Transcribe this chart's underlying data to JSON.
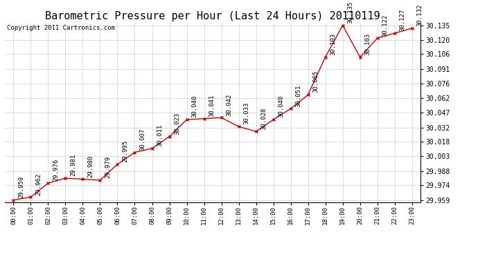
{
  "title": "Barometric Pressure per Hour (Last 24 Hours) 20110119",
  "copyright": "Copyright 2011 Cartronics.com",
  "hours": [
    "00:00",
    "01:00",
    "02:00",
    "03:00",
    "04:00",
    "05:00",
    "06:00",
    "07:00",
    "08:00",
    "09:00",
    "10:00",
    "11:00",
    "12:00",
    "13:00",
    "14:00",
    "15:00",
    "16:00",
    "17:00",
    "18:00",
    "19:00",
    "20:00",
    "21:00",
    "22:00",
    "23:00"
  ],
  "values": [
    29.959,
    29.962,
    29.976,
    29.981,
    29.98,
    29.979,
    29.995,
    30.007,
    30.011,
    30.023,
    30.04,
    30.041,
    30.042,
    30.033,
    30.028,
    30.04,
    30.051,
    30.065,
    30.103,
    30.135,
    30.103,
    30.122,
    30.127,
    30.132
  ],
  "ylim_min": 29.957,
  "ylim_max": 30.137,
  "yticks": [
    29.959,
    29.974,
    29.988,
    30.003,
    30.018,
    30.032,
    30.047,
    30.062,
    30.076,
    30.091,
    30.106,
    30.12,
    30.135
  ],
  "line_color": "#cc0000",
  "marker_color": "#cc0000",
  "bg_color": "#ffffff",
  "grid_color": "#bbbbbb",
  "title_fontsize": 11,
  "annotation_fontsize": 6.5,
  "copyright_fontsize": 6.5,
  "tick_fontsize": 6.5,
  "ytick_fontsize": 7
}
